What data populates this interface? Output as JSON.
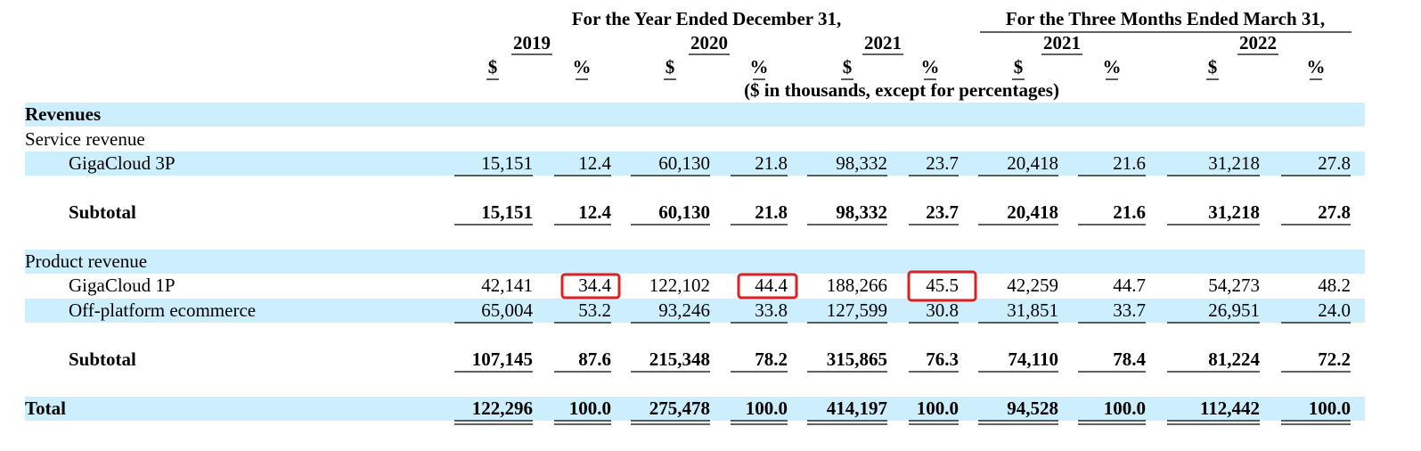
{
  "header": {
    "period_groups": [
      "For the Year Ended December 31,",
      "For the Three Months Ended March 31,"
    ],
    "years": [
      "2019",
      "2020",
      "2021",
      "2021",
      "2022"
    ],
    "column_units": [
      "$",
      "%",
      "$",
      "%",
      "$",
      "%",
      "$",
      "%",
      "$",
      "%"
    ],
    "note": "($ in thousands, except for percentages)"
  },
  "table": {
    "rows": [
      {
        "label": "Revenues"
      },
      {
        "label": "Service revenue"
      },
      {
        "label": "GigaCloud 3P",
        "values": [
          "15,151",
          "12.4",
          "60,130",
          "21.8",
          "98,332",
          "23.7",
          "20,418",
          "21.6",
          "31,218",
          "27.8"
        ]
      },
      {
        "label": "Subtotal",
        "values": [
          "15,151",
          "12.4",
          "60,130",
          "21.8",
          "98,332",
          "23.7",
          "20,418",
          "21.6",
          "31,218",
          "27.8"
        ]
      },
      {
        "label": "Product revenue"
      },
      {
        "label": "GigaCloud 1P",
        "values": [
          "42,141",
          "34.4",
          "122,102",
          "44.4",
          "188,266",
          "45.5",
          "42,259",
          "44.7",
          "54,273",
          "48.2"
        ]
      },
      {
        "label": "Off-platform ecommerce",
        "values": [
          "65,004",
          "53.2",
          "93,246",
          "33.8",
          "127,599",
          "30.8",
          "31,851",
          "33.7",
          "26,951",
          "24.0"
        ]
      },
      {
        "label": "Subtotal",
        "values": [
          "107,145",
          "87.6",
          "215,348",
          "78.2",
          "315,865",
          "76.3",
          "74,110",
          "78.4",
          "81,224",
          "72.2"
        ]
      },
      {
        "label": "Total",
        "values": [
          "122,296",
          "100.0",
          "275,478",
          "100.0",
          "414,197",
          "100.0",
          "94,528",
          "100.0",
          "112,442",
          "100.0"
        ]
      }
    ]
  }
}
